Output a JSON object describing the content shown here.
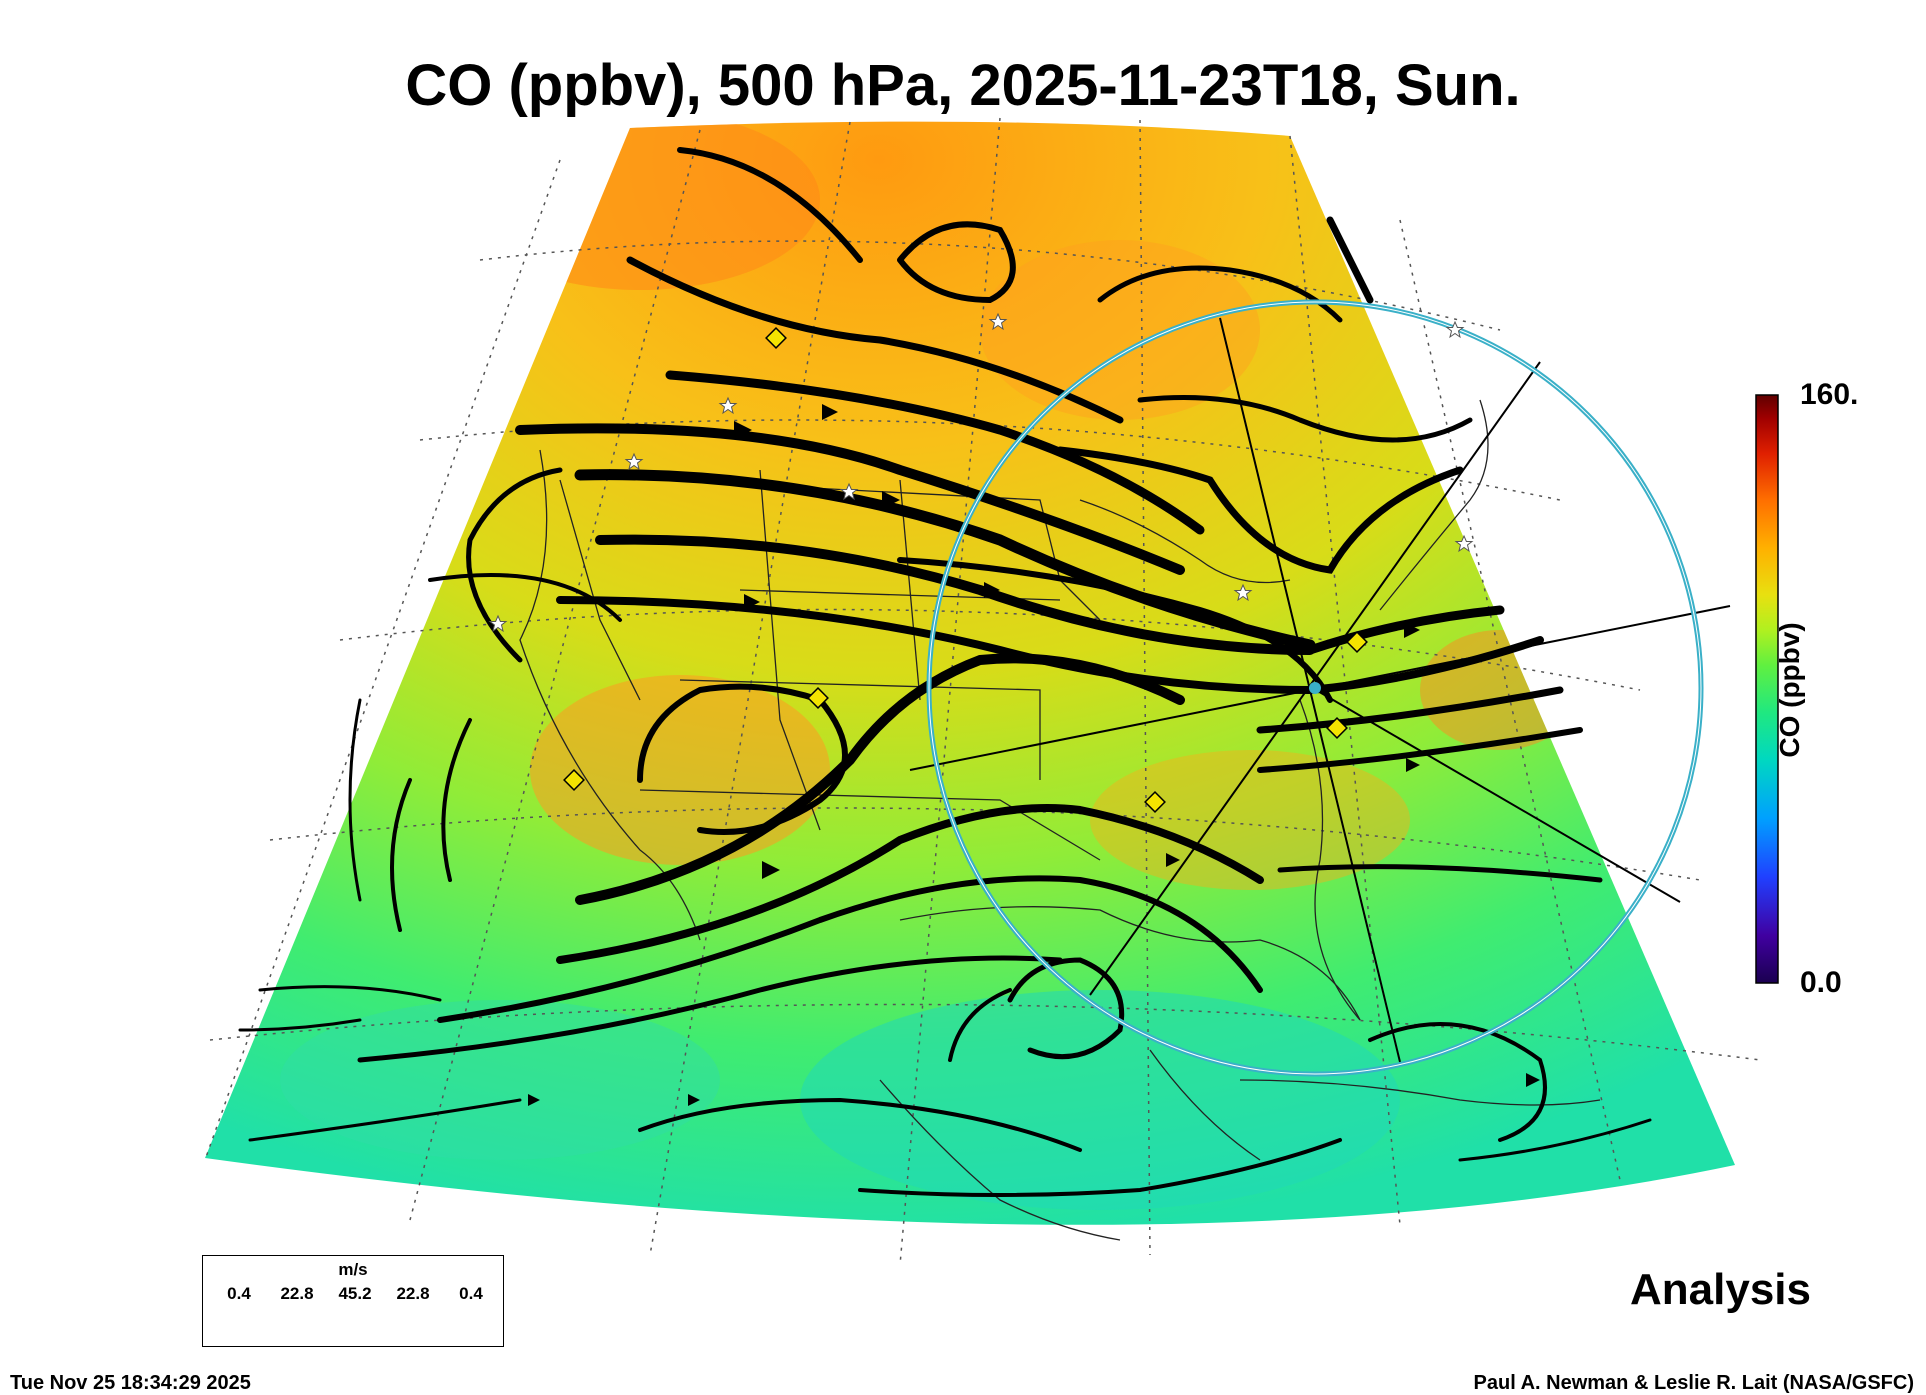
{
  "title": "CO (ppbv), 500 hPa, 2025-11-23T18, Sun.",
  "colorbar": {
    "max_label": "160.",
    "min_label": "0.0",
    "label": "CO (ppbv)",
    "stops": [
      "#1a0050",
      "#4000a0",
      "#2040ff",
      "#00a0ff",
      "#00d8c0",
      "#20e880",
      "#60f040",
      "#b0f020",
      "#e8e010",
      "#ffb000",
      "#ff7000",
      "#e02000",
      "#a00000",
      "#600000"
    ]
  },
  "wind_legend": {
    "unit": "m/s",
    "values": [
      "0.4",
      "22.8",
      "45.2",
      "22.8",
      "0.4"
    ]
  },
  "stamp": "Analysis",
  "footer": {
    "timestamp": "Tue Nov 25 18:34:29 2025",
    "credit": "Paul A. Newman & Leslie R. Lait (NASA/GSFC)"
  },
  "colors": {
    "circle": "#3ab0c8",
    "streamline": "#000000",
    "marker_diamond": "#f4e400",
    "marker_star": "#ffffff"
  }
}
